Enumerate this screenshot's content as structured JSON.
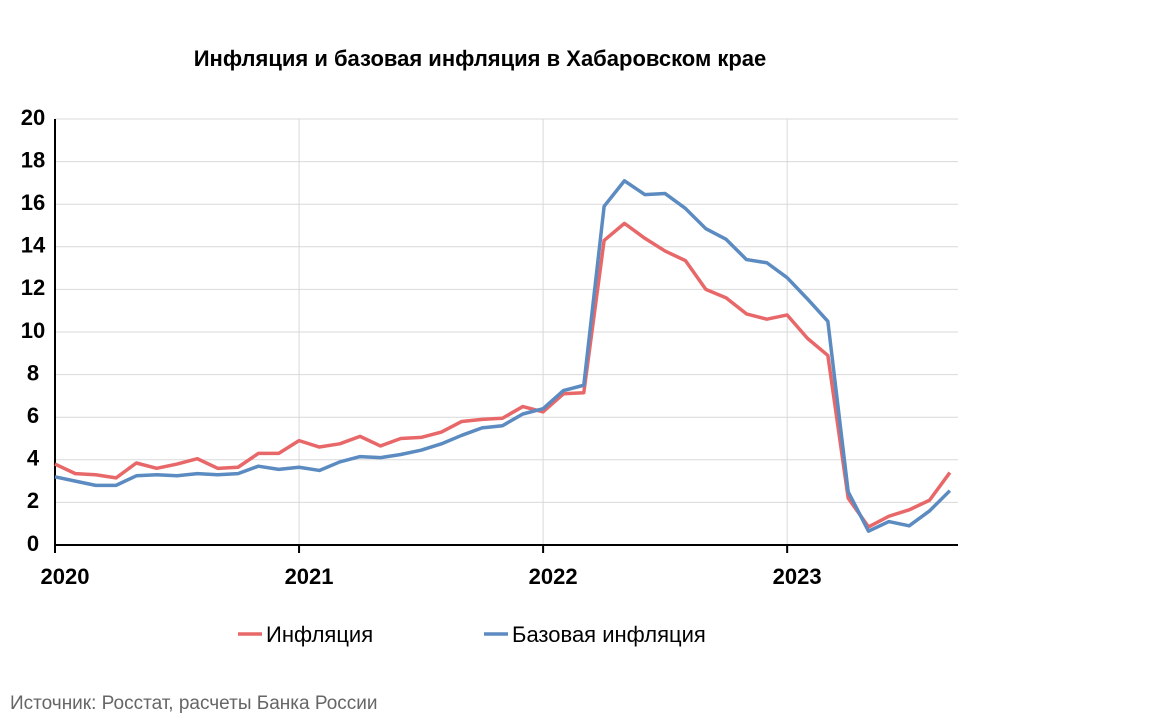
{
  "chart_data": {
    "type": "line",
    "title": "Инфляция и базовая инфляция в Хабаровском крае",
    "source": "Источник: Росстат, расчеты Банка России",
    "x": [
      2020,
      2020.0833,
      2020.1667,
      2020.25,
      2020.3333,
      2020.4167,
      2020.5,
      2020.5833,
      2020.6667,
      2020.75,
      2020.8333,
      2020.9167,
      2021,
      2021.0833,
      2021.1667,
      2021.25,
      2021.3333,
      2021.4167,
      2021.5,
      2021.5833,
      2021.6667,
      2021.75,
      2021.8333,
      2021.9167,
      2022,
      2022.0833,
      2022.1667,
      2022.25,
      2022.3333,
      2022.4167,
      2022.5,
      2022.5833,
      2022.6667,
      2022.75,
      2022.8333,
      2022.9167,
      2023,
      2023.0833,
      2023.1667,
      2023.25,
      2023.3333,
      2023.4167,
      2023.5,
      2023.5833,
      2023.6667
    ],
    "series": [
      {
        "name": "Инфляция",
        "color": "#e8686a",
        "values": [
          3.8,
          3.35,
          3.3,
          3.15,
          3.85,
          3.6,
          3.8,
          4.05,
          3.6,
          3.65,
          4.3,
          4.3,
          4.9,
          4.6,
          4.75,
          5.1,
          4.65,
          5.0,
          5.05,
          5.3,
          5.8,
          5.9,
          5.95,
          6.5,
          6.25,
          7.1,
          7.15,
          14.3,
          15.1,
          14.4,
          13.8,
          13.35,
          12.0,
          11.6,
          10.85,
          10.6,
          10.8,
          9.7,
          8.9,
          2.2,
          0.85,
          1.35,
          1.65,
          2.1,
          3.4
        ]
      },
      {
        "name": "Базовая инфляция",
        "color": "#5b8bc0",
        "values": [
          3.2,
          3.0,
          2.8,
          2.8,
          3.25,
          3.3,
          3.25,
          3.35,
          3.3,
          3.35,
          3.7,
          3.55,
          3.65,
          3.5,
          3.9,
          4.15,
          4.1,
          4.25,
          4.45,
          4.75,
          5.15,
          5.5,
          5.6,
          6.15,
          6.4,
          7.25,
          7.5,
          15.9,
          17.1,
          16.45,
          16.5,
          15.8,
          14.85,
          14.35,
          13.4,
          13.25,
          12.55,
          11.55,
          10.5,
          2.5,
          0.65,
          1.1,
          0.9,
          1.6,
          2.55
        ]
      }
    ],
    "xlim": [
      2020,
      2023.7
    ],
    "xticks": [
      2020,
      2021,
      2022,
      2023
    ],
    "ylim": [
      0,
      20
    ],
    "yticks": [
      0,
      2,
      4,
      6,
      8,
      10,
      12,
      14,
      16,
      18,
      20
    ],
    "grid": true
  }
}
